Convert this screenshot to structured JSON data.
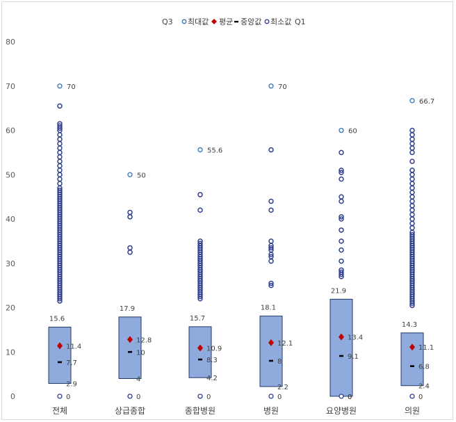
{
  "colors": {
    "box_fill": "#8faadc",
    "box_stroke": "#203864",
    "outlier": "#2f3f8f",
    "max_marker": "#2e75b6",
    "mean_marker": "#c00000",
    "median_marker": "#000000"
  },
  "legend": {
    "q3": "Q3",
    "max": "최대값",
    "mean": "평균",
    "median": "중앙값",
    "min": "최소값",
    "q1": "Q1"
  },
  "chart_data": {
    "type": "box",
    "title": "",
    "xlabel": "",
    "ylabel": "",
    "ylim": [
      0,
      80
    ],
    "yticks": [
      0,
      10,
      20,
      30,
      40,
      50,
      60,
      70,
      80
    ],
    "grid": false,
    "legend_position": "top-center",
    "categories": [
      "전체",
      "상급종합",
      "종합병원",
      "병원",
      "요양병원",
      "의원"
    ],
    "q3": [
      15.6,
      17.9,
      15.7,
      18.1,
      21.9,
      14.3
    ],
    "max": [
      70,
      50,
      55.6,
      70,
      60,
      66.7
    ],
    "mean": [
      11.4,
      12.8,
      10.9,
      12.1,
      13.4,
      11.1
    ],
    "median": [
      7.7,
      10,
      8.3,
      8,
      9.1,
      6.8
    ],
    "min": [
      0,
      0,
      0,
      0,
      0,
      0
    ],
    "q1": [
      2.9,
      4,
      4.2,
      2.2,
      0,
      2.4
    ],
    "outliers": [
      [
        21.5,
        22,
        22.5,
        23,
        23.5,
        24,
        24.5,
        25,
        25.5,
        26,
        26.5,
        27,
        27.5,
        28,
        28.5,
        29,
        29.5,
        30,
        30.5,
        31,
        31.5,
        32,
        32.5,
        33,
        33.5,
        34,
        34.5,
        35,
        35.5,
        36,
        36.5,
        37,
        37.5,
        38,
        38.5,
        39,
        39.5,
        40,
        40.5,
        41,
        41.5,
        42,
        42.5,
        43,
        43.5,
        44,
        44.5,
        45,
        45.5,
        46,
        46.5,
        47,
        48,
        49,
        50,
        51,
        52,
        53,
        54,
        55,
        56,
        57,
        58,
        59,
        60,
        60.5,
        61,
        61.5,
        65.5
      ],
      [
        32.5,
        33.5,
        40.5,
        41.5
      ],
      [
        22,
        22.5,
        23,
        23.5,
        24,
        24.5,
        25,
        25.5,
        26,
        26.5,
        27,
        27.5,
        28,
        28.5,
        29,
        29.5,
        30,
        30.5,
        31,
        31.5,
        32,
        32.5,
        33,
        33.5,
        34,
        34.5,
        35,
        42,
        45.5
      ],
      [
        25,
        25.5,
        30.5,
        31.5,
        32,
        33,
        33.5,
        34,
        35,
        42,
        44,
        55.6
      ],
      [
        27,
        27.5,
        28,
        28.5,
        30.5,
        33,
        35,
        37.5,
        40,
        40.5,
        44,
        45,
        49,
        50.5,
        51,
        55
      ],
      [
        20.5,
        21,
        21.5,
        22,
        22.5,
        23,
        23.5,
        24,
        24.5,
        25,
        25.5,
        26,
        26.5,
        27,
        27.5,
        28,
        28.5,
        29,
        29.5,
        30,
        30.5,
        31,
        31.5,
        32,
        32.5,
        33,
        33.5,
        34,
        34.5,
        35,
        35.5,
        36,
        36.5,
        37,
        38,
        39,
        40,
        41,
        42,
        43,
        44,
        45,
        46,
        47,
        48,
        49,
        50,
        51,
        53,
        55,
        56,
        57,
        58,
        59,
        60
      ]
    ]
  }
}
